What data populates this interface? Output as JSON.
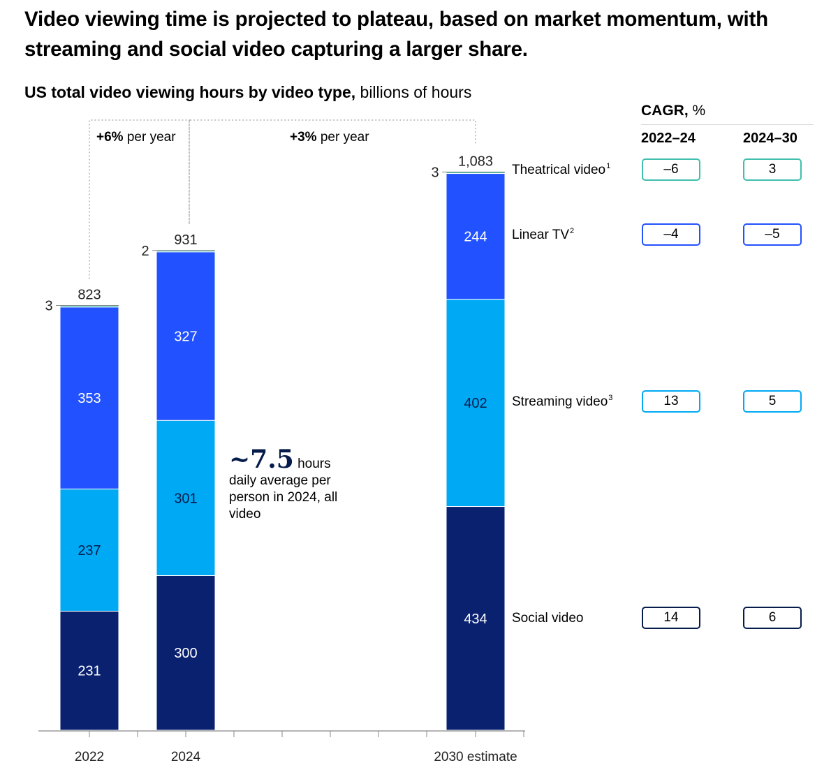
{
  "title": "Video viewing time is projected to plateau, based on market momentum, with streaming and social video capturing a larger share.",
  "subtitle_bold": "US total video viewing hours by video type,",
  "subtitle_unit": " billions of hours",
  "annotation": {
    "big": "~7.5",
    "unit": "hours",
    "text": "daily average per person in 2024, all video"
  },
  "growth": [
    {
      "bold": "+6%",
      "text": " per year"
    },
    {
      "bold": "+3%",
      "text": " per year"
    }
  ],
  "cagr": {
    "label_bold": "CAGR,",
    "label_unit": " %",
    "periods": [
      "2022–24",
      "2024–30"
    ]
  },
  "series_labels": [
    {
      "name": "Theatrical video",
      "sup": "1",
      "cagr": [
        "–6",
        "3"
      ],
      "color": "#3fbfad"
    },
    {
      "name": "Linear TV",
      "sup": "2",
      "cagr": [
        "–4",
        "–5"
      ],
      "color": "#2251ff"
    },
    {
      "name": "Streaming video",
      "sup": "3",
      "cagr": [
        "13",
        "5"
      ],
      "color": "#00a9f4"
    },
    {
      "name": "Social video",
      "sup": "",
      "cagr": [
        "14",
        "6"
      ],
      "color": "#051c4b"
    }
  ],
  "chart_data": {
    "type": "bar",
    "stacked": true,
    "categories": [
      "2022",
      "2024",
      "2030 estimate"
    ],
    "series": [
      {
        "name": "Social video",
        "values": [
          231,
          300,
          434
        ],
        "color": "#0a2170",
        "text_color": "#ffffff"
      },
      {
        "name": "Streaming video",
        "values": [
          237,
          301,
          402
        ],
        "color": "#00a9f4",
        "text_color": "#051c4b"
      },
      {
        "name": "Linear TV",
        "values": [
          353,
          327,
          244
        ],
        "color": "#2251ff",
        "text_color": "#ffffff"
      },
      {
        "name": "Theatrical video",
        "values": [
          3,
          2,
          3
        ],
        "color": "#3fbfad",
        "text_color": "#222222"
      }
    ],
    "totals": [
      "823",
      "931",
      "1,083"
    ],
    "ylim": [
      0,
      1100
    ],
    "title": "US total video viewing hours by video type",
    "ylabel": "billions of hours"
  }
}
